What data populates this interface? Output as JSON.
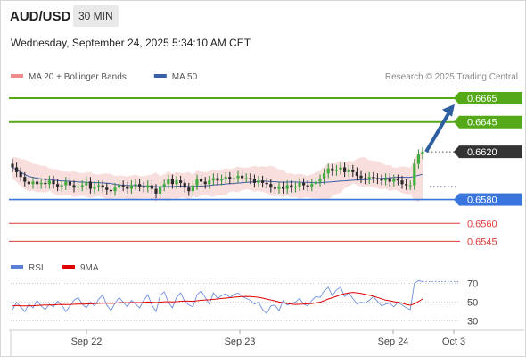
{
  "header": {
    "symbol": "AUD/USD",
    "timeframe": "30 MIN",
    "datetime": "Wednesday, September 24, 2025 5:34:10 AM CET"
  },
  "chart_data": [
    {
      "type": "candlestick",
      "legend": [
        {
          "name": "MA 20 + Bollinger Bands",
          "color": "#f08c8c"
        },
        {
          "name": "MA 50",
          "color": "#3b5fa6"
        }
      ],
      "watermark": "Research © 2025 Trading Central",
      "x_ticks": [
        "Sep 22",
        "Sep 23",
        "Sep 24",
        "Oct 3"
      ],
      "levels": [
        {
          "value": 0.6665,
          "label": "0.6665",
          "kind": "resistance",
          "color": "#55a817"
        },
        {
          "value": 0.6645,
          "label": "0.6645",
          "kind": "resistance",
          "color": "#55a817"
        },
        {
          "value": 0.662,
          "label": "0.6620",
          "kind": "last",
          "color": "#333333"
        },
        {
          "value": 0.658,
          "label": "0.6580",
          "kind": "pivot",
          "color": "#3a74dd"
        },
        {
          "value": 0.656,
          "label": "0.6560",
          "kind": "support",
          "color": "#e03c3c"
        },
        {
          "value": 0.6545,
          "label": "0.6545",
          "kind": "support",
          "color": "#e03c3c"
        }
      ],
      "ylim": [
        0.6537,
        0.668
      ],
      "trend_arrow": {
        "from": 0.662,
        "to": 0.666,
        "color": "#2d5fa0"
      },
      "close": [
        0.6607,
        0.6603,
        0.6599,
        0.6595,
        0.6593,
        0.6595,
        0.6593,
        0.6594,
        0.6593,
        0.6596,
        0.6593,
        0.6591,
        0.6592,
        0.6595,
        0.6592,
        0.659,
        0.6591,
        0.6592,
        0.6595,
        0.6589,
        0.6591,
        0.6592,
        0.659,
        0.6588,
        0.6587,
        0.659,
        0.6592,
        0.6591,
        0.6589,
        0.6592,
        0.6593,
        0.6591,
        0.659,
        0.6592,
        0.6589,
        0.6585,
        0.6591,
        0.6593,
        0.6597,
        0.6593,
        0.6596,
        0.6594,
        0.659,
        0.6587,
        0.6592,
        0.6597,
        0.6595,
        0.6593,
        0.6596,
        0.6598,
        0.6596,
        0.6597,
        0.6599,
        0.6597,
        0.6598,
        0.66,
        0.6598,
        0.6598,
        0.6597,
        0.6594,
        0.6596,
        0.6594,
        0.6593,
        0.659,
        0.6589,
        0.6591,
        0.6589,
        0.6592,
        0.659,
        0.6591,
        0.6594,
        0.6592,
        0.6591,
        0.6593,
        0.6595,
        0.6597,
        0.6602,
        0.6606,
        0.6604,
        0.6605,
        0.6607,
        0.6603,
        0.6605,
        0.6603,
        0.66,
        0.6598,
        0.6597,
        0.6599,
        0.6598,
        0.6597,
        0.6596,
        0.6598,
        0.6595,
        0.6597,
        0.6596,
        0.6593,
        0.6592,
        0.6592,
        0.661,
        0.6618,
        0.662
      ]
    },
    {
      "type": "line",
      "title": "RSI",
      "legend": [
        {
          "name": "RSI",
          "color": "#5b7fd9"
        },
        {
          "name": "9MA",
          "color": "#e00000"
        }
      ],
      "y_ticks": [
        70,
        50,
        30
      ],
      "ylim": [
        24,
        80
      ],
      "series": [
        {
          "name": "RSI",
          "values": [
            42,
            50,
            45,
            40,
            48,
            44,
            52,
            46,
            42,
            48,
            45,
            51,
            47,
            40,
            46,
            52,
            55,
            48,
            44,
            50,
            46,
            53,
            58,
            47,
            41,
            49,
            55,
            50,
            45,
            52,
            48,
            44,
            52,
            58,
            47,
            40,
            57,
            61,
            50,
            44,
            55,
            60,
            51,
            47,
            45,
            58,
            62,
            55,
            48,
            60,
            54,
            57,
            59,
            55,
            58,
            60,
            56,
            54,
            52,
            48,
            50,
            42,
            38,
            46,
            47,
            41,
            52,
            47,
            49,
            50,
            54,
            48,
            46,
            52,
            56,
            55,
            62,
            66,
            57,
            63,
            66,
            56,
            60,
            54,
            48,
            50,
            49,
            52,
            56,
            51,
            46,
            48,
            49,
            45,
            50,
            47,
            44,
            42,
            70,
            73,
            72
          ]
        },
        {
          "name": "9MA",
          "values": [
            46,
            46.5,
            46,
            46,
            46,
            46.2,
            46.5,
            46.8,
            47,
            47,
            47.2,
            47.4,
            47.6,
            47.5,
            47.5,
            47.8,
            48,
            48,
            48.1,
            48.3,
            48.5,
            48.8,
            49,
            49,
            48.8,
            49,
            49.5,
            49.6,
            49.4,
            49.6,
            49.6,
            49.5,
            49.8,
            50.2,
            50,
            49.6,
            50,
            50.5,
            50.6,
            50.3,
            50.6,
            51,
            51.2,
            51.1,
            51,
            51.5,
            52,
            52.4,
            52.6,
            53,
            53.4,
            54,
            54.4,
            54.8,
            55.3,
            55.7,
            56,
            56.2,
            56,
            55.7,
            55.2,
            54.4,
            53.3,
            52.4,
            51.4,
            50.2,
            49.3,
            48.6,
            48,
            47.6,
            47.8,
            48,
            48.4,
            48.6,
            49.2,
            50,
            51.6,
            53.4,
            54.8,
            56.3,
            58,
            59,
            59.8,
            60.4,
            60,
            59.3,
            58.5,
            57.5,
            56.4,
            55,
            53.6,
            52.2,
            51.5,
            50.6,
            50,
            49,
            47.6,
            46.8,
            48.3,
            50.8,
            53.4
          ]
        }
      ]
    }
  ]
}
